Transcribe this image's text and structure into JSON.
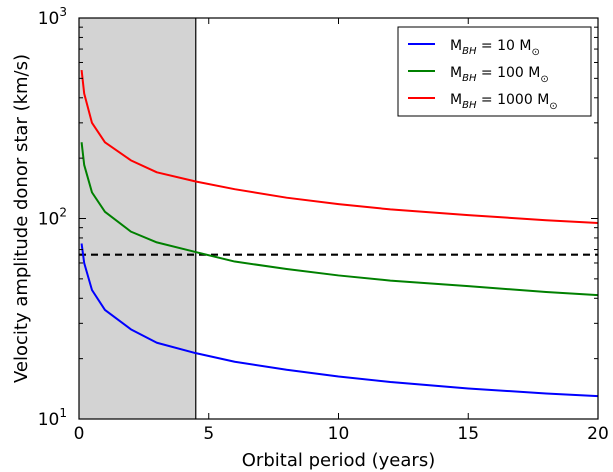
{
  "chart_data": {
    "type": "line",
    "xlabel": "Orbital period (years)",
    "ylabel": "Velocity amplitude donor star (km/s)",
    "xlim": [
      0,
      20
    ],
    "ylim": [
      10,
      1000
    ],
    "yscale": "log",
    "x_ticks": [
      0,
      5,
      10,
      15,
      20
    ],
    "y_ticks": [
      {
        "value": 10,
        "base": "10",
        "exp": "1"
      },
      {
        "value": 100,
        "base": "10",
        "exp": "2"
      },
      {
        "value": 1000,
        "base": "10",
        "exp": "3"
      }
    ],
    "shaded_region": {
      "x": [
        0,
        4.5
      ],
      "color": "#d3d3d3"
    },
    "vertical_line": {
      "x": 4.5,
      "color": "#000000"
    },
    "reference_line": {
      "y": 66,
      "style": "dashed",
      "color": "#000000"
    },
    "legend_position": "top-right",
    "series": [
      {
        "name": "M_BH = 10 M_sun",
        "label": {
          "prefix": "M",
          "sub": "BH",
          "mid": " = 10 M",
          "sun_sub": "⊙"
        },
        "color": "#0000ff",
        "x": [
          0.1,
          0.2,
          0.5,
          1,
          2,
          3,
          4.5,
          6,
          8,
          10,
          12,
          15,
          18,
          20
        ],
        "y": [
          75,
          60,
          44,
          35,
          28,
          24,
          21.3,
          19.3,
          17.6,
          16.3,
          15.3,
          14.2,
          13.4,
          13
        ]
      },
      {
        "name": "M_BH = 100 M_sun",
        "label": {
          "prefix": "M",
          "sub": "BH",
          "mid": " = 100 M",
          "sun_sub": "⊙"
        },
        "color": "#008000",
        "x": [
          0.1,
          0.2,
          0.5,
          1,
          2,
          3,
          4.5,
          6,
          8,
          10,
          12,
          15,
          18,
          20
        ],
        "y": [
          240,
          185,
          135,
          108,
          86,
          76,
          68,
          61,
          56,
          52,
          49,
          46,
          43,
          41.5
        ]
      },
      {
        "name": "M_BH = 1000 M_sun",
        "label": {
          "prefix": "M",
          "sub": "BH",
          "mid": " = 1000 M",
          "sun_sub": "⊙"
        },
        "color": "#ff0000",
        "x": [
          0.1,
          0.2,
          0.5,
          1,
          2,
          3,
          4.5,
          6,
          8,
          10,
          12,
          15,
          18,
          20
        ],
        "y": [
          550,
          420,
          300,
          240,
          195,
          170,
          153,
          140,
          127,
          118,
          111,
          104,
          98,
          95
        ]
      }
    ]
  }
}
